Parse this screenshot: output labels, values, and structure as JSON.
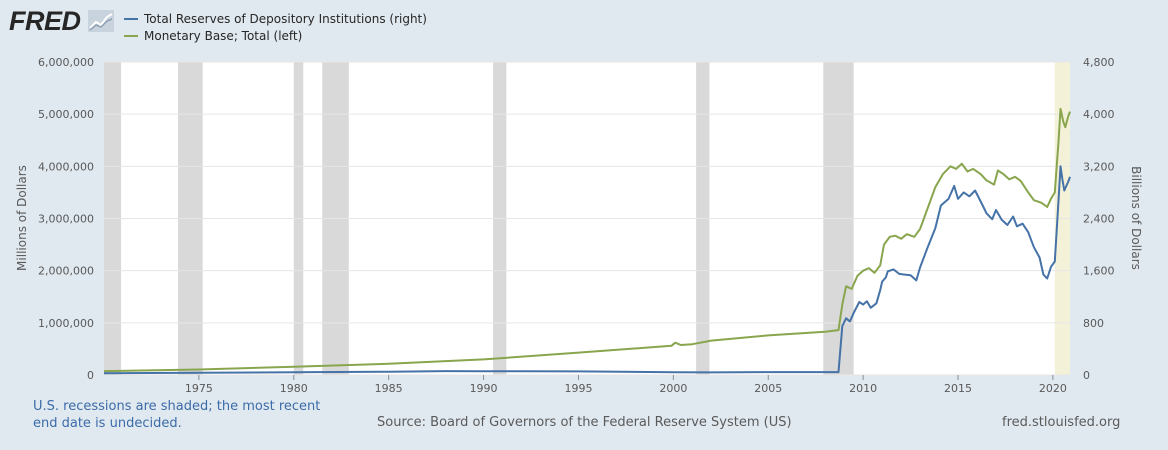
{
  "header": {
    "logo_text": "FRED",
    "logo_icon": "line-chart-icon"
  },
  "colors": {
    "reserves": "#4572a7",
    "monetary_base": "#89a54e",
    "recession": "#d9d9d9",
    "undecided": "#f4f1d9",
    "plot_bg": "#ffffff",
    "grid": "#e6e6e6"
  },
  "footer": {
    "note": "U.S. recessions are shaded; the most recent end date is undecided.",
    "source": "Source: Board of Governors of the Federal Reserve System (US)",
    "site": "fred.stlouisfed.org"
  },
  "chart_data": {
    "type": "line",
    "legend_position": "top-left",
    "grid": true,
    "xlim": [
      1970.0,
      2020.9
    ],
    "x_ticks": [
      "1975",
      "1980",
      "1985",
      "1990",
      "1995",
      "2000",
      "2005",
      "2010",
      "2015",
      "2020"
    ],
    "left_axis": {
      "label": "Millions of Dollars",
      "ylim": [
        0,
        6000000
      ],
      "ticks": [
        "0",
        "1,000,000",
        "2,000,000",
        "3,000,000",
        "4,000,000",
        "5,000,000",
        "6,000,000"
      ]
    },
    "right_axis": {
      "label": "Billions of Dollars",
      "ylim": [
        0,
        4800
      ],
      "ticks": [
        "0",
        "800",
        "1,600",
        "2,400",
        "3,200",
        "4,000",
        "4,800"
      ]
    },
    "recessions": [
      [
        1969.9,
        1970.9
      ],
      [
        1973.9,
        1975.2
      ],
      [
        1980.0,
        1980.5
      ],
      [
        1981.5,
        1982.9
      ],
      [
        1990.5,
        1991.2
      ],
      [
        2001.2,
        2001.9
      ],
      [
        2007.9,
        2009.5
      ]
    ],
    "undecided_recession": [
      2020.1,
      2020.9
    ],
    "series": [
      {
        "name": "Total Reserves of Depository Institutions (right)",
        "axis": "right",
        "color": "#4572a7",
        "points": [
          [
            1970.0,
            28
          ],
          [
            1975.0,
            35
          ],
          [
            1980.0,
            42
          ],
          [
            1985.0,
            50
          ],
          [
            1988.0,
            60
          ],
          [
            1990.0,
            58
          ],
          [
            1992.0,
            57
          ],
          [
            1995.0,
            55
          ],
          [
            1998.0,
            48
          ],
          [
            2000.0,
            42
          ],
          [
            2002.0,
            40
          ],
          [
            2005.0,
            45
          ],
          [
            2008.0,
            45
          ],
          [
            2008.7,
            45
          ],
          [
            2008.9,
            750
          ],
          [
            2009.1,
            870
          ],
          [
            2009.3,
            820
          ],
          [
            2009.5,
            950
          ],
          [
            2009.8,
            1120
          ],
          [
            2010.0,
            1080
          ],
          [
            2010.2,
            1130
          ],
          [
            2010.4,
            1030
          ],
          [
            2010.7,
            1100
          ],
          [
            2010.9,
            1300
          ],
          [
            2011.0,
            1430
          ],
          [
            2011.2,
            1500
          ],
          [
            2011.3,
            1590
          ],
          [
            2011.6,
            1620
          ],
          [
            2011.9,
            1550
          ],
          [
            2012.2,
            1540
          ],
          [
            2012.5,
            1530
          ],
          [
            2012.8,
            1450
          ],
          [
            2013.0,
            1650
          ],
          [
            2013.4,
            1960
          ],
          [
            2013.8,
            2250
          ],
          [
            2014.1,
            2600
          ],
          [
            2014.5,
            2700
          ],
          [
            2014.8,
            2900
          ],
          [
            2015.0,
            2700
          ],
          [
            2015.3,
            2800
          ],
          [
            2015.6,
            2740
          ],
          [
            2015.9,
            2830
          ],
          [
            2016.3,
            2600
          ],
          [
            2016.5,
            2480
          ],
          [
            2016.8,
            2390
          ],
          [
            2017.0,
            2530
          ],
          [
            2017.3,
            2380
          ],
          [
            2017.6,
            2300
          ],
          [
            2017.9,
            2430
          ],
          [
            2018.1,
            2280
          ],
          [
            2018.4,
            2320
          ],
          [
            2018.7,
            2190
          ],
          [
            2019.0,
            1960
          ],
          [
            2019.3,
            1800
          ],
          [
            2019.5,
            1540
          ],
          [
            2019.7,
            1480
          ],
          [
            2019.9,
            1660
          ],
          [
            2020.1,
            1740
          ],
          [
            2020.3,
            2700
          ],
          [
            2020.4,
            3200
          ],
          [
            2020.5,
            3000
          ],
          [
            2020.6,
            2830
          ],
          [
            2020.8,
            2960
          ],
          [
            2020.9,
            3040
          ]
        ]
      },
      {
        "name": "Monetary Base; Total (left)",
        "axis": "left",
        "color": "#89a54e",
        "points": [
          [
            1970.0,
            75000
          ],
          [
            1975.0,
            105000
          ],
          [
            1980.0,
            160000
          ],
          [
            1985.0,
            215000
          ],
          [
            1990.0,
            300000
          ],
          [
            1995.0,
            430000
          ],
          [
            1999.9,
            560000
          ],
          [
            2000.1,
            620000
          ],
          [
            2000.4,
            575000
          ],
          [
            2001.0,
            590000
          ],
          [
            2002.0,
            660000
          ],
          [
            2005.0,
            760000
          ],
          [
            2008.0,
            830000
          ],
          [
            2008.7,
            860000
          ],
          [
            2008.9,
            1350000
          ],
          [
            2009.1,
            1700000
          ],
          [
            2009.4,
            1650000
          ],
          [
            2009.7,
            1900000
          ],
          [
            2010.0,
            2000000
          ],
          [
            2010.3,
            2050000
          ],
          [
            2010.6,
            1960000
          ],
          [
            2010.9,
            2100000
          ],
          [
            2011.1,
            2500000
          ],
          [
            2011.4,
            2650000
          ],
          [
            2011.7,
            2670000
          ],
          [
            2012.0,
            2610000
          ],
          [
            2012.3,
            2700000
          ],
          [
            2012.7,
            2650000
          ],
          [
            2013.0,
            2800000
          ],
          [
            2013.4,
            3200000
          ],
          [
            2013.8,
            3600000
          ],
          [
            2014.2,
            3850000
          ],
          [
            2014.6,
            4000000
          ],
          [
            2014.9,
            3950000
          ],
          [
            2015.2,
            4050000
          ],
          [
            2015.5,
            3900000
          ],
          [
            2015.8,
            3950000
          ],
          [
            2016.2,
            3850000
          ],
          [
            2016.5,
            3730000
          ],
          [
            2016.9,
            3650000
          ],
          [
            2017.1,
            3920000
          ],
          [
            2017.4,
            3850000
          ],
          [
            2017.7,
            3750000
          ],
          [
            2018.0,
            3800000
          ],
          [
            2018.3,
            3720000
          ],
          [
            2018.7,
            3500000
          ],
          [
            2019.0,
            3350000
          ],
          [
            2019.4,
            3300000
          ],
          [
            2019.7,
            3220000
          ],
          [
            2019.9,
            3380000
          ],
          [
            2020.1,
            3500000
          ],
          [
            2020.3,
            4500000
          ],
          [
            2020.4,
            5100000
          ],
          [
            2020.55,
            4850000
          ],
          [
            2020.65,
            4750000
          ],
          [
            2020.8,
            4950000
          ],
          [
            2020.9,
            5050000
          ]
        ]
      }
    ]
  }
}
